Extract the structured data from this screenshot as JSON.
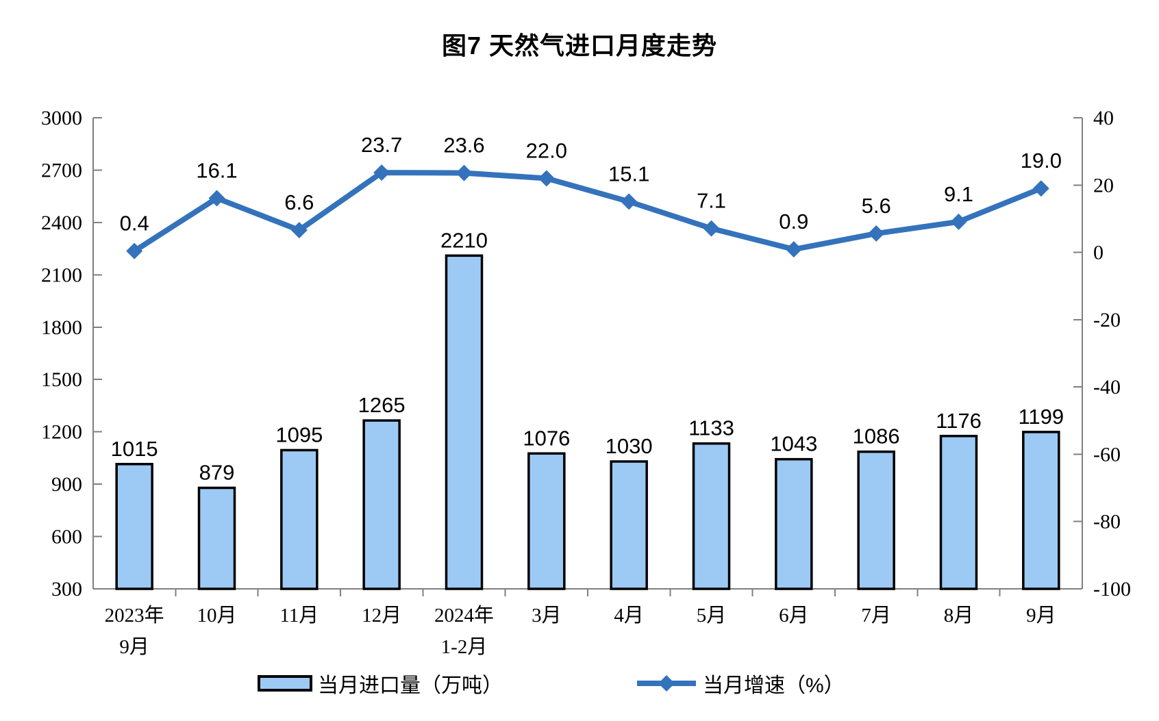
{
  "title": "图7 天然气进口月度走势",
  "legend": {
    "bar_label": "当月进口量（万吨）",
    "line_label": "当月增速（%）"
  },
  "chart_data": {
    "type": "combo-bar-line",
    "title": "图7 天然气进口月度走势",
    "categories": [
      "2023年9月",
      "10月",
      "11月",
      "12月",
      "2024年1-2月",
      "3月",
      "4月",
      "5月",
      "6月",
      "7月",
      "8月",
      "9月"
    ],
    "category_label_lines": [
      [
        "2023年",
        "9月"
      ],
      [
        "10月"
      ],
      [
        "11月"
      ],
      [
        "12月"
      ],
      [
        "2024年",
        "1-2月"
      ],
      [
        "3月"
      ],
      [
        "4月"
      ],
      [
        "5月"
      ],
      [
        "6月"
      ],
      [
        "7月"
      ],
      [
        "8月"
      ],
      [
        "9月"
      ]
    ],
    "series": [
      {
        "name": "当月进口量（万吨）",
        "type": "bar",
        "axis": "left",
        "values": [
          1015,
          879,
          1095,
          1265,
          2210,
          1076,
          1030,
          1133,
          1043,
          1086,
          1176,
          1199
        ]
      },
      {
        "name": "当月增速（%）",
        "type": "line",
        "axis": "right",
        "values": [
          0.4,
          16.1,
          6.6,
          23.7,
          23.6,
          22.0,
          15.1,
          7.1,
          0.9,
          5.6,
          9.1,
          19.0
        ]
      }
    ],
    "left_axis": {
      "min": 300,
      "max": 3000,
      "step": 300,
      "ticks": [
        300,
        600,
        900,
        1200,
        1500,
        1800,
        2100,
        2400,
        2700,
        3000
      ]
    },
    "right_axis": {
      "min": -100,
      "max": 40,
      "step": 20,
      "ticks": [
        -100,
        -80,
        -60,
        -40,
        -20,
        0,
        20,
        40
      ]
    },
    "grid": false,
    "legend_position": "bottom",
    "bar_label_format": "integer",
    "line_label_format": "one-decimal"
  },
  "colors": {
    "bar_fill": "#9DC9F5",
    "bar_border": "#000000",
    "line": "#3473BB",
    "axis": "#7F7F7F",
    "text": "#000000"
  }
}
